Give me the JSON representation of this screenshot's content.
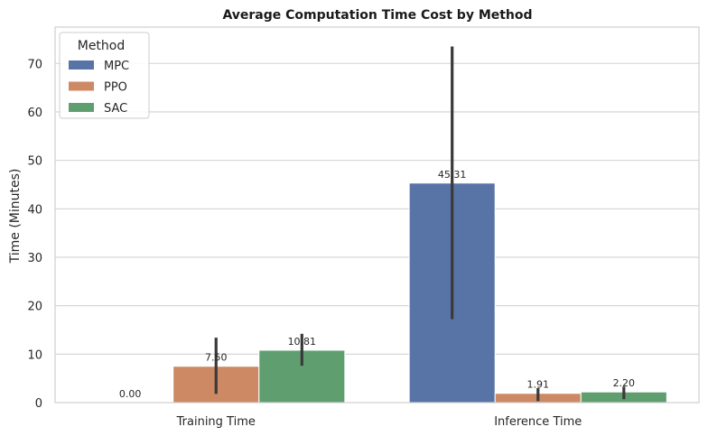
{
  "chart_data": {
    "type": "bar",
    "title": "Average Computation Time Cost by Method",
    "xlabel": "",
    "ylabel": "Time (Minutes)",
    "ylim": [
      0,
      77.5
    ],
    "yticks": [
      0,
      10,
      20,
      30,
      40,
      50,
      60,
      70
    ],
    "grid": true,
    "legend_title": "Method",
    "legend_position": "top-left",
    "categories": [
      "Training Time",
      "Inference Time"
    ],
    "series": [
      {
        "name": "MPC",
        "color": "#5874a6",
        "values": [
          0.0,
          45.31
        ],
        "err_low": [
          0.0,
          17.2
        ],
        "err_high": [
          0.0,
          73.5
        ],
        "labels": [
          "0.00",
          "45.31"
        ]
      },
      {
        "name": "PPO",
        "color": "#cc8963",
        "values": [
          7.5,
          1.91
        ],
        "err_low": [
          1.8,
          0.3
        ],
        "err_high": [
          13.4,
          3.0
        ],
        "labels": [
          "7.50",
          "1.91"
        ]
      },
      {
        "name": "SAC",
        "color": "#5f9f6f",
        "values": [
          10.81,
          2.2
        ],
        "err_low": [
          7.6,
          0.7
        ],
        "err_high": [
          14.2,
          3.3
        ],
        "labels": [
          "10.81",
          "2.20"
        ]
      }
    ]
  }
}
